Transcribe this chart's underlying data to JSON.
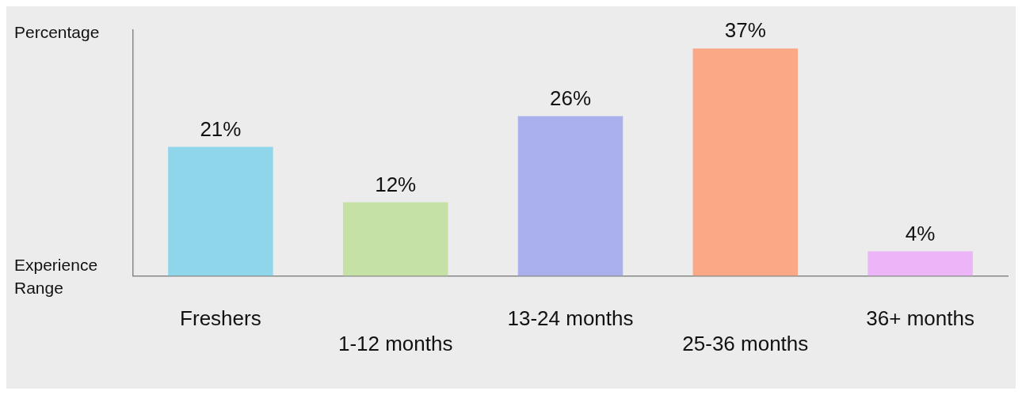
{
  "chart_data": {
    "type": "bar",
    "xlabel": "Experience Range",
    "ylabel": "Percentage",
    "categories": [
      "Freshers",
      "1-12 months",
      "13-24 months",
      "25-36 months",
      "36+ months"
    ],
    "values": [
      21,
      12,
      26,
      37,
      4
    ],
    "colors": [
      "#8fd6ea",
      "#c6e1a6",
      "#a9b0ec",
      "#fba886",
      "#ecb5f7"
    ],
    "value_labels": [
      "21%",
      "12%",
      "26%",
      "37%",
      "4%"
    ],
    "grid": false,
    "legend": false,
    "tick_labels": "x"
  }
}
